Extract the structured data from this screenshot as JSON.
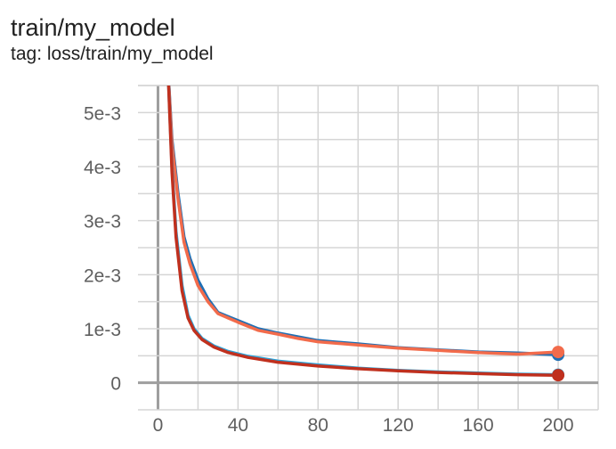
{
  "header": {
    "title": "train/my_model",
    "subtitle": "tag: loss/train/my_model"
  },
  "colors": {
    "grid": "#d5d5d5",
    "zero_axis": "#9e9e9e",
    "tick_text": "#5f5f5f"
  },
  "chart_data": {
    "type": "line",
    "title": "train/my_model",
    "subtitle": "tag: loss/train/my_model",
    "xlabel": "",
    "ylabel": "",
    "xlim": [
      -10,
      220
    ],
    "ylim": [
      -0.0005,
      0.0055
    ],
    "grid": true,
    "x_ticks": [
      0,
      40,
      80,
      120,
      160,
      200
    ],
    "x_tick_labels": [
      "0",
      "40",
      "80",
      "120",
      "160",
      "200"
    ],
    "y_ticks": [
      0,
      0.001,
      0.002,
      0.003,
      0.004,
      0.005
    ],
    "y_tick_labels": [
      "0",
      "1e-3",
      "2e-3",
      "3e-3",
      "4e-3",
      "5e-3"
    ],
    "series": [
      {
        "color": "#1f6fb4",
        "x": [
          5,
          7,
          10,
          13,
          16,
          20,
          25,
          30,
          40,
          50,
          60,
          70,
          80,
          100,
          120,
          140,
          160,
          180,
          200
        ],
        "y": [
          0.0058,
          0.0045,
          0.0035,
          0.0027,
          0.0023,
          0.0019,
          0.00155,
          0.0013,
          0.00115,
          0.001,
          0.00092,
          0.00085,
          0.00078,
          0.00072,
          0.00065,
          0.00061,
          0.00057,
          0.00055,
          0.00052
        ]
      },
      {
        "color": "#f26b4b",
        "x": [
          5,
          7,
          10,
          13,
          16,
          20,
          25,
          30,
          40,
          50,
          60,
          70,
          80,
          100,
          120,
          140,
          160,
          180,
          200
        ],
        "y": [
          0.0058,
          0.0044,
          0.0034,
          0.0026,
          0.0022,
          0.0018,
          0.0015,
          0.00128,
          0.00112,
          0.00097,
          0.0009,
          0.00082,
          0.00076,
          0.0007,
          0.00064,
          0.0006,
          0.00056,
          0.00053,
          0.00057
        ]
      },
      {
        "color": "#2ba3d9",
        "x": [
          5,
          7,
          9,
          12,
          15,
          18,
          22,
          28,
          35,
          45,
          60,
          80,
          100,
          120,
          140,
          160,
          180,
          200
        ],
        "y": [
          0.0058,
          0.004,
          0.0028,
          0.0018,
          0.00125,
          0.001,
          0.00082,
          0.00068,
          0.00058,
          0.00049,
          0.0004,
          0.00033,
          0.00027,
          0.00023,
          0.0002,
          0.00018,
          0.00016,
          0.00015
        ]
      },
      {
        "color": "#c0301e",
        "x": [
          5,
          7,
          9,
          12,
          15,
          18,
          22,
          28,
          35,
          45,
          60,
          80,
          100,
          120,
          140,
          160,
          180,
          200
        ],
        "y": [
          0.0058,
          0.0039,
          0.0027,
          0.0017,
          0.0012,
          0.00097,
          0.0008,
          0.00066,
          0.00056,
          0.00047,
          0.00038,
          0.00031,
          0.00026,
          0.00022,
          0.00019,
          0.00017,
          0.00015,
          0.00014
        ]
      }
    ]
  }
}
